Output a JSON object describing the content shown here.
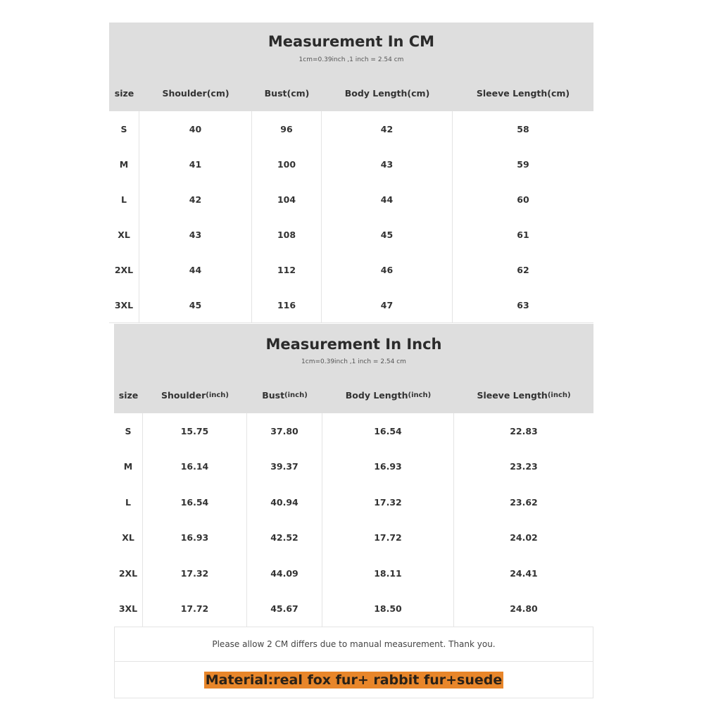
{
  "cm_table": {
    "title": "Measurement In CM",
    "subtitle": "1cm=0.39inch ,1 inch = 2.54 cm",
    "headers": [
      {
        "label": "size",
        "unit": ""
      },
      {
        "label": "Shoulder(cm)",
        "unit": ""
      },
      {
        "label": "Bust(cm)",
        "unit": ""
      },
      {
        "label": "Body Length(cm)",
        "unit": ""
      },
      {
        "label": "Sleeve Length(cm)",
        "unit": ""
      }
    ],
    "rows": [
      [
        "S",
        "40",
        "96",
        "42",
        "58"
      ],
      [
        "M",
        "41",
        "100",
        "43",
        "59"
      ],
      [
        "L",
        "42",
        "104",
        "44",
        "60"
      ],
      [
        "XL",
        "43",
        "108",
        "45",
        "61"
      ],
      [
        "2XL",
        "44",
        "112",
        "46",
        "62"
      ],
      [
        "3XL",
        "45",
        "116",
        "47",
        "63"
      ]
    ]
  },
  "inch_table": {
    "title": "Measurement In Inch",
    "subtitle": "1cm=0.39inch ,1 inch = 2.54 cm",
    "headers": [
      {
        "label": "size",
        "unit": ""
      },
      {
        "label": "Shoulder",
        "unit": "(inch)"
      },
      {
        "label": "Bust ",
        "unit": "(inch)"
      },
      {
        "label": "Body Length",
        "unit": "(inch)"
      },
      {
        "label": "Sleeve Length",
        "unit": "(inch)"
      }
    ],
    "rows": [
      [
        "S",
        "15.75",
        "37.80",
        "16.54",
        "22.83"
      ],
      [
        "M",
        "16.14",
        "39.37",
        "16.93",
        "23.23"
      ],
      [
        "L",
        "16.54",
        "40.94",
        "17.32",
        "23.62"
      ],
      [
        "XL",
        "16.93",
        "42.52",
        "17.72",
        "24.02"
      ],
      [
        "2XL",
        "17.32",
        "44.09",
        "18.11",
        "24.41"
      ],
      [
        "3XL",
        "17.72",
        "45.67",
        "18.50",
        "24.80"
      ]
    ]
  },
  "note": "Please allow 2 CM differs due to manual measurement. Thank you.",
  "material": "Material:real fox fur+ rabbit fur+suede",
  "colors": {
    "header_bg": "#dedede",
    "material_highlight": "#e8862a"
  }
}
